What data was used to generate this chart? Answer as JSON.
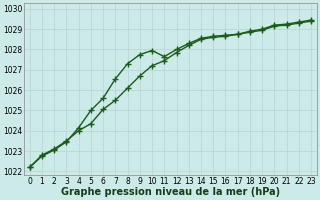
{
  "xlabel": "Graphe pression niveau de la mer (hPa)",
  "bg_color": "#cceae8",
  "grid_color": "#b8d8d5",
  "line_color": "#1a5c1a",
  "ylim": [
    1021.8,
    1030.3
  ],
  "xlim": [
    -0.5,
    23.5
  ],
  "yticks": [
    1022,
    1023,
    1024,
    1025,
    1026,
    1027,
    1028,
    1029,
    1030
  ],
  "xticks": [
    0,
    1,
    2,
    3,
    4,
    5,
    6,
    7,
    8,
    9,
    10,
    11,
    12,
    13,
    14,
    15,
    16,
    17,
    18,
    19,
    20,
    21,
    22,
    23
  ],
  "line1_x": [
    0,
    1,
    2,
    3,
    4,
    5,
    6,
    7,
    8,
    9,
    10,
    11,
    12,
    13,
    14,
    15,
    16,
    17,
    18,
    19,
    20,
    21,
    22,
    23
  ],
  "line1_y": [
    1022.2,
    1022.8,
    1023.1,
    1023.5,
    1024.0,
    1024.35,
    1025.05,
    1025.5,
    1026.1,
    1026.7,
    1027.2,
    1027.45,
    1027.85,
    1028.2,
    1028.5,
    1028.6,
    1028.65,
    1028.75,
    1028.85,
    1028.95,
    1029.15,
    1029.2,
    1029.3,
    1029.4
  ],
  "line2_x": [
    0,
    1,
    2,
    3,
    4,
    5,
    6,
    7,
    8,
    9,
    10,
    11,
    12,
    13,
    14,
    15,
    16,
    17,
    18,
    19,
    20,
    21,
    22,
    23
  ],
  "line2_y": [
    1022.2,
    1022.75,
    1023.05,
    1023.45,
    1024.15,
    1025.0,
    1025.6,
    1026.55,
    1027.3,
    1027.75,
    1027.95,
    1027.65,
    1028.0,
    1028.3,
    1028.55,
    1028.65,
    1028.7,
    1028.75,
    1028.9,
    1029.0,
    1029.2,
    1029.25,
    1029.35,
    1029.45
  ],
  "marker": "+",
  "markersize": 5,
  "markeredgewidth": 1.0,
  "linewidth": 1.0,
  "tick_fontsize": 5.5,
  "label_fontsize": 7.0
}
